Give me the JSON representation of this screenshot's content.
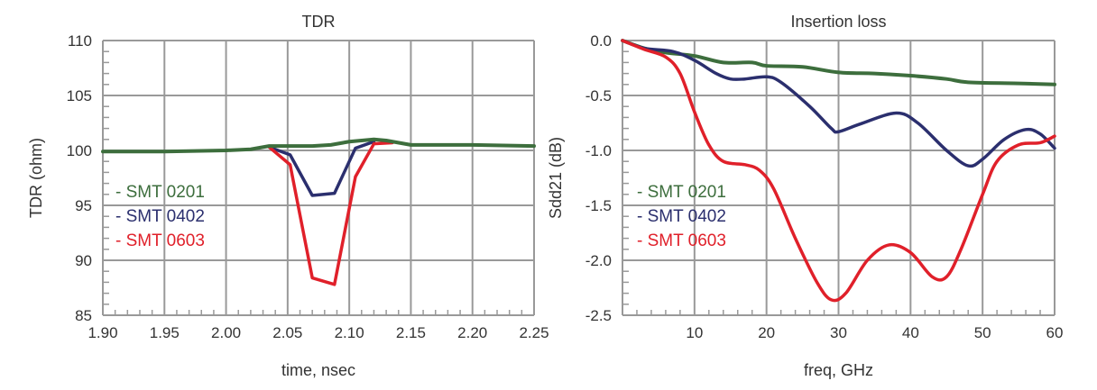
{
  "chart_data": [
    {
      "type": "line",
      "title": "TDR",
      "xlabel": "time, nsec",
      "ylabel": "TDR (ohm)",
      "xlim": [
        1.9,
        2.25
      ],
      "ylim": [
        85,
        110
      ],
      "xticks": [
        "1.90",
        "1.95",
        "2.00",
        "2.05",
        "2.10",
        "2.15",
        "2.20",
        "2.25"
      ],
      "yticks": [
        "85",
        "90",
        "95",
        "100",
        "105",
        "110"
      ],
      "grid": true,
      "legend_placement": "center-left",
      "smooth": false,
      "series": [
        {
          "name": "- SMT 0201",
          "color": "#3d6e3d",
          "x": [
            1.9,
            1.95,
            2.0,
            2.02,
            2.035,
            2.05,
            2.07,
            2.085,
            2.1,
            2.12,
            2.13,
            2.15,
            2.2,
            2.25
          ],
          "y": [
            99.9,
            99.9,
            100.0,
            100.1,
            100.4,
            100.4,
            100.4,
            100.5,
            100.8,
            101.0,
            100.9,
            100.5,
            100.5,
            100.4
          ]
        },
        {
          "name": "- SMT 0402",
          "color": "#2b2f6e",
          "x": [
            2.035,
            2.052,
            2.07,
            2.088,
            2.105,
            2.12
          ],
          "y": [
            100.3,
            99.6,
            95.9,
            96.1,
            100.2,
            100.8
          ]
        },
        {
          "name": "- SMT 0603",
          "color": "#e0202a",
          "x": [
            2.035,
            2.052,
            2.07,
            2.088,
            2.105,
            2.12,
            2.135
          ],
          "y": [
            100.3,
            98.7,
            88.4,
            87.8,
            97.6,
            100.6,
            100.7
          ]
        }
      ]
    },
    {
      "type": "line",
      "title": "Insertion loss",
      "xlabel": "freq, GHz",
      "ylabel": "Sdd21 (dB)",
      "xlim": [
        0,
        60
      ],
      "ylim": [
        -2.5,
        0.0
      ],
      "xticks": [
        "",
        "10",
        "20",
        "30",
        "40",
        "50",
        "60"
      ],
      "yticks": [
        "-2.5",
        "-2.0",
        "-1.5",
        "-1.0",
        "-0.5",
        "0.0"
      ],
      "grid": true,
      "legend_placement": "center-left",
      "smooth": true,
      "series": [
        {
          "name": "- SMT 0201",
          "color": "#3d6e3d",
          "x": [
            0,
            3,
            6,
            10,
            14,
            18,
            20,
            25,
            30,
            35,
            40,
            45,
            48,
            55,
            60
          ],
          "y": [
            0,
            -0.07,
            -0.11,
            -0.14,
            -0.2,
            -0.2,
            -0.23,
            -0.24,
            -0.29,
            -0.3,
            -0.32,
            -0.35,
            -0.38,
            -0.39,
            -0.4
          ]
        },
        {
          "name": "- SMT 0402",
          "color": "#2b2f6e",
          "x": [
            0,
            3,
            7,
            10,
            13,
            15,
            17,
            20,
            22,
            26,
            29,
            30,
            33,
            38,
            41,
            45,
            48,
            50,
            53,
            56,
            58,
            60
          ],
          "y": [
            0,
            -0.07,
            -0.1,
            -0.18,
            -0.3,
            -0.35,
            -0.35,
            -0.33,
            -0.38,
            -0.6,
            -0.8,
            -0.83,
            -0.76,
            -0.66,
            -0.75,
            -1.0,
            -1.14,
            -1.08,
            -0.9,
            -0.81,
            -0.85,
            -0.98
          ]
        },
        {
          "name": "- SMT 0603",
          "color": "#e0202a",
          "x": [
            0,
            3,
            6,
            8,
            10,
            12,
            14,
            17,
            19,
            21,
            24,
            27,
            29,
            31,
            34,
            37,
            40,
            43,
            45,
            47,
            50,
            52,
            55,
            58,
            60
          ],
          "y": [
            0,
            -0.08,
            -0.15,
            -0.3,
            -0.65,
            -0.95,
            -1.1,
            -1.13,
            -1.18,
            -1.35,
            -1.8,
            -2.2,
            -2.36,
            -2.3,
            -2.0,
            -1.86,
            -1.93,
            -2.15,
            -2.15,
            -1.9,
            -1.4,
            -1.1,
            -0.95,
            -0.93,
            -0.87
          ]
        }
      ]
    }
  ]
}
